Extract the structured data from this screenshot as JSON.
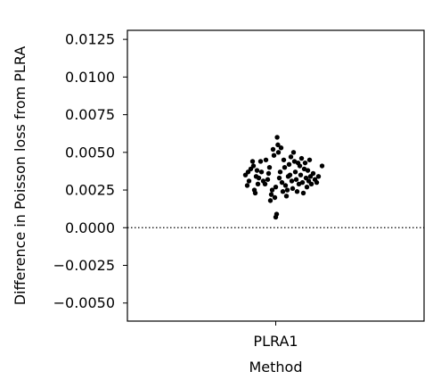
{
  "chart_data": {
    "type": "scatter",
    "title": "",
    "xlabel": "Method",
    "ylabel": "Difference in Poisson loss from PLRA",
    "categories": [
      "PLRA1"
    ],
    "ylim": [
      -0.0062,
      0.0131
    ],
    "yticks": [
      -0.005,
      -0.0025,
      0.0,
      0.0025,
      0.005,
      0.0075,
      0.01,
      0.0125
    ],
    "ytick_labels": [
      "−0.0050",
      "−0.0025",
      "0.0000",
      "0.0025",
      "0.0050",
      "0.0075",
      "0.0100",
      "0.0125"
    ],
    "reference_line": {
      "y": 0.0,
      "style": "dotted"
    },
    "grid": false,
    "legend": "none",
    "point_color": "#000000",
    "series": [
      {
        "category": "PLRA1",
        "points": [
          {
            "jitter": -0.17,
            "y": 0.0035
          },
          {
            "jitter": -0.16,
            "y": 0.0028
          },
          {
            "jitter": -0.155,
            "y": 0.0037
          },
          {
            "jitter": -0.15,
            "y": 0.0031
          },
          {
            "jitter": -0.14,
            "y": 0.0039
          },
          {
            "jitter": -0.13,
            "y": 0.0044
          },
          {
            "jitter": -0.125,
            "y": 0.0041
          },
          {
            "jitter": -0.12,
            "y": 0.0025
          },
          {
            "jitter": -0.115,
            "y": 0.0023
          },
          {
            "jitter": -0.11,
            "y": 0.0034
          },
          {
            "jitter": -0.105,
            "y": 0.0038
          },
          {
            "jitter": -0.1,
            "y": 0.0029
          },
          {
            "jitter": -0.095,
            "y": 0.0033
          },
          {
            "jitter": -0.085,
            "y": 0.0044
          },
          {
            "jitter": -0.08,
            "y": 0.0037
          },
          {
            "jitter": -0.07,
            "y": 0.0031
          },
          {
            "jitter": -0.06,
            "y": 0.0029
          },
          {
            "jitter": -0.055,
            "y": 0.0045
          },
          {
            "jitter": -0.045,
            "y": 0.0032
          },
          {
            "jitter": -0.04,
            "y": 0.0036
          },
          {
            "jitter": -0.035,
            "y": 0.004
          },
          {
            "jitter": -0.03,
            "y": 0.0018
          },
          {
            "jitter": -0.025,
            "y": 0.0022
          },
          {
            "jitter": -0.02,
            "y": 0.0025
          },
          {
            "jitter": -0.015,
            "y": 0.0052
          },
          {
            "jitter": -0.01,
            "y": 0.0048
          },
          {
            "jitter": -0.005,
            "y": 0.002
          },
          {
            "jitter": 0.0,
            "y": 0.0027
          },
          {
            "jitter": 0.0,
            "y": 0.0007
          },
          {
            "jitter": 0.005,
            "y": 0.0009
          },
          {
            "jitter": 0.008,
            "y": 0.006
          },
          {
            "jitter": 0.012,
            "y": 0.0055
          },
          {
            "jitter": 0.015,
            "y": 0.005
          },
          {
            "jitter": 0.02,
            "y": 0.0033
          },
          {
            "jitter": 0.025,
            "y": 0.0037
          },
          {
            "jitter": 0.03,
            "y": 0.0053
          },
          {
            "jitter": 0.035,
            "y": 0.003
          },
          {
            "jitter": 0.04,
            "y": 0.0024
          },
          {
            "jitter": 0.045,
            "y": 0.0045
          },
          {
            "jitter": 0.05,
            "y": 0.004
          },
          {
            "jitter": 0.055,
            "y": 0.0028
          },
          {
            "jitter": 0.06,
            "y": 0.0021
          },
          {
            "jitter": 0.065,
            "y": 0.0025
          },
          {
            "jitter": 0.07,
            "y": 0.0034
          },
          {
            "jitter": 0.075,
            "y": 0.0042
          },
          {
            "jitter": 0.08,
            "y": 0.0035
          },
          {
            "jitter": 0.085,
            "y": 0.0047
          },
          {
            "jitter": 0.09,
            "y": 0.0031
          },
          {
            "jitter": 0.095,
            "y": 0.0026
          },
          {
            "jitter": 0.1,
            "y": 0.005
          },
          {
            "jitter": 0.105,
            "y": 0.0044
          },
          {
            "jitter": 0.11,
            "y": 0.0037
          },
          {
            "jitter": 0.115,
            "y": 0.0032
          },
          {
            "jitter": 0.12,
            "y": 0.0024
          },
          {
            "jitter": 0.125,
            "y": 0.0043
          },
          {
            "jitter": 0.13,
            "y": 0.0029
          },
          {
            "jitter": 0.135,
            "y": 0.0041
          },
          {
            "jitter": 0.14,
            "y": 0.0035
          },
          {
            "jitter": 0.145,
            "y": 0.0046
          },
          {
            "jitter": 0.15,
            "y": 0.003
          },
          {
            "jitter": 0.155,
            "y": 0.0023
          },
          {
            "jitter": 0.16,
            "y": 0.0039
          },
          {
            "jitter": 0.165,
            "y": 0.0043
          },
          {
            "jitter": 0.17,
            "y": 0.0033
          },
          {
            "jitter": 0.175,
            "y": 0.0027
          },
          {
            "jitter": 0.18,
            "y": 0.0038
          },
          {
            "jitter": 0.185,
            "y": 0.0031
          },
          {
            "jitter": 0.19,
            "y": 0.0045
          },
          {
            "jitter": 0.195,
            "y": 0.0034
          },
          {
            "jitter": 0.2,
            "y": 0.0029
          },
          {
            "jitter": 0.21,
            "y": 0.0036
          },
          {
            "jitter": 0.22,
            "y": 0.0032
          },
          {
            "jitter": 0.23,
            "y": 0.003
          },
          {
            "jitter": 0.24,
            "y": 0.0034
          },
          {
            "jitter": 0.26,
            "y": 0.0041
          }
        ]
      }
    ]
  }
}
